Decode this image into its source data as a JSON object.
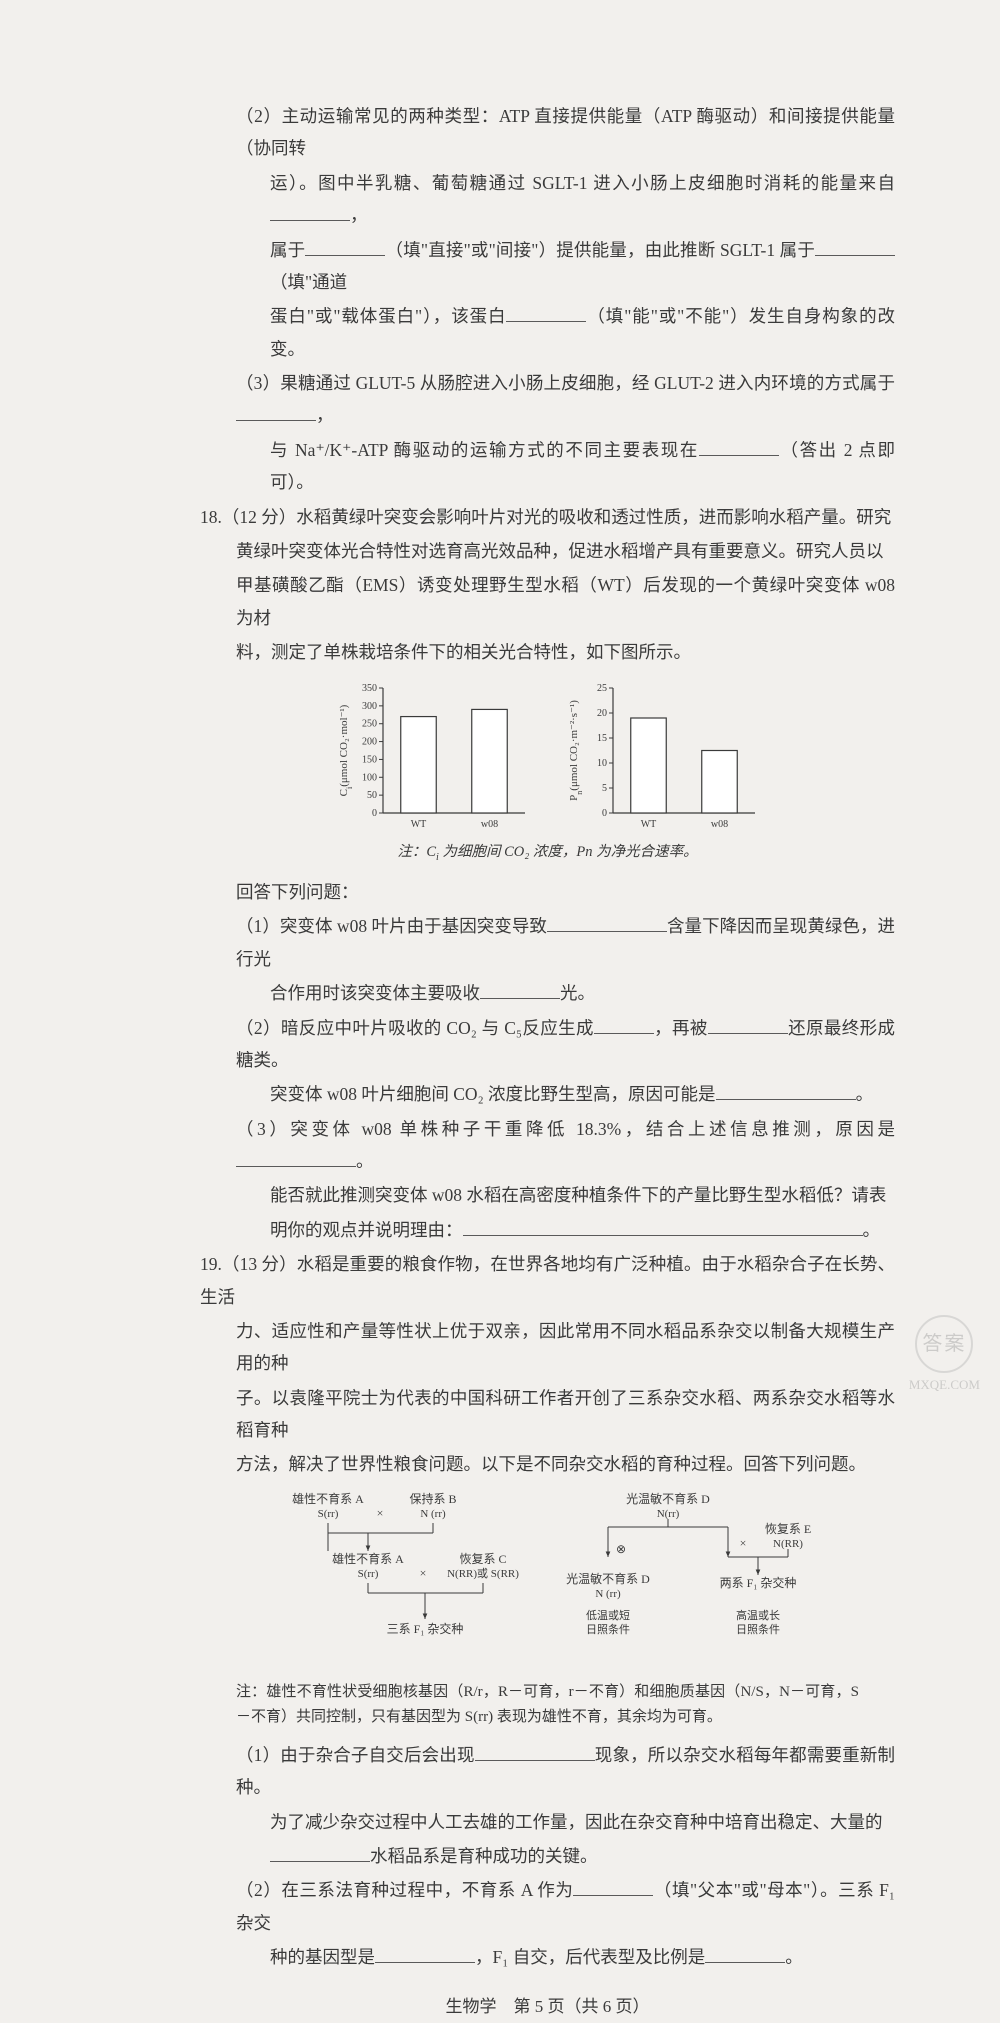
{
  "q17": {
    "sub2": {
      "line1": "（2）主动运输常见的两种类型：ATP 直接提供能量（ATP 酶驱动）和间接提供能量（协同转",
      "line2": "运）。图中半乳糖、葡萄糖通过 SGLT-1 进入小肠上皮细胞时消耗的能量来自",
      "line2_tail": "，",
      "line3a": "属于",
      "line3b": "（填\"直接\"或\"间接\"）提供能量，由此推断 SGLT-1 属于",
      "line3c": "（填\"通道",
      "line4a": "蛋白\"或\"载体蛋白\"），该蛋白",
      "line4b": "（填\"能\"或\"不能\"）发生自身构象的改变。"
    },
    "sub3": {
      "line1a": "（3）果糖通过 GLUT-5 从肠腔进入小肠上皮细胞，经 GLUT-2 进入内环境的方式属于",
      "line1b": "，",
      "line2a": "与 Na⁺/K⁺-ATP 酶驱动的运输方式的不同主要表现在",
      "line2b": "（答出 2 点即可）。"
    }
  },
  "q18": {
    "head": "18.（12 分）水稻黄绿叶突变会影响叶片对光的吸收和透过性质，进而影响水稻产量。研究",
    "line2": "黄绿叶突变体光合特性对选育高光效品种，促进水稻增产具有重要意义。研究人员以",
    "line3": "甲基磺酸乙酯（EMS）诱变处理野生型水稻（WT）后发现的一个黄绿叶突变体 w08 为材",
    "line4": "料，测定了单株栽培条件下的相关光合特性，如下图所示。",
    "caption_a": "注：C",
    "caption_b": " 为细胞间 CO₂ 浓度，P",
    "caption_c": "n 为净光合速率。",
    "answer_head": "回答下列问题：",
    "s1a": "（1）突变体 w08 叶片由于基因突变导致",
    "s1b": "含量下降因而呈现黄绿色，进行光",
    "s1c": "合作用时该突变体主要吸收",
    "s1d": "光。",
    "s2a": "（2）暗反应中叶片吸收的 CO₂ 与 C₅反应生成",
    "s2b": "，再被",
    "s2c": "还原最终形成糖类。",
    "s2d": "突变体 w08 叶片细胞间 CO₂ 浓度比野生型高，原因可能是",
    "s2e": "。",
    "s3a": "（3）突变体 w08 单株种子干重降低 18.3%，结合上述信息推测，原因是",
    "s3b": "。",
    "s3c": "能否就此推测突变体 w08 水稻在高密度种植条件下的产量比野生型水稻低？请表",
    "s3d": "明你的观点并说明理由：",
    "s3e": "。",
    "chart1": {
      "ylabel_a": "C",
      "ylabel_b": "(μmol CO₂·mol⁻¹)",
      "ymax": 350,
      "yticks": [
        0,
        50,
        100,
        150,
        200,
        250,
        300,
        350
      ],
      "cats": [
        "WT",
        "w08"
      ],
      "values": [
        270,
        290
      ],
      "bar_fill": "#ffffff",
      "bar_stroke": "#3a3a3a",
      "axis_color": "#3a3a3a"
    },
    "chart2": {
      "ylabel_a": "P",
      "ylabel_b": "(μmol CO₂·m⁻²·s⁻¹)",
      "ymax": 25,
      "yticks": [
        0,
        5,
        10,
        15,
        20,
        25
      ],
      "cats": [
        "WT",
        "w08"
      ],
      "values": [
        19,
        12.5
      ],
      "bar_fill": "#ffffff",
      "bar_stroke": "#3a3a3a",
      "axis_color": "#3a3a3a"
    }
  },
  "q19": {
    "head": "19.（13 分）水稻是重要的粮食作物，在世界各地均有广泛种植。由于水稻杂合子在长势、生活",
    "line2": "力、适应性和产量等性状上优于双亲，因此常用不同水稻品系杂交以制备大规模生产用的种",
    "line3": "子。以袁隆平院士为代表的中国科研工作者开创了三系杂交水稻、两系杂交水稻等水稻育种",
    "line4": "方法，解决了世界性粮食问题。以下是不同杂交水稻的育种过程。回答下列问题。",
    "diag": {
      "A": "雄性不育系 A",
      "A_g": "S(rr)",
      "B": "保持系 B",
      "B_g": "N (rr)",
      "A2": "雄性不育系 A",
      "A2_g": "S(rr)",
      "C": "恢复系 C",
      "C_g": "N(RR)或 S(RR)",
      "F1_3": "三系 F₁ 杂交种",
      "D": "光温敏不育系 D",
      "D_g": "N(rr)",
      "self": "⊗",
      "D2": "光温敏不育系 D",
      "D2_g": "N (rr)",
      "D2_cond": "低温或短\n日照条件",
      "E": "恢复系 E",
      "E_g": "N(RR)",
      "F1_2": "两系 F₁ 杂交种",
      "F1_2_cond": "高温或长\n日照条件",
      "cross": "×"
    },
    "note": "注：雄性不育性状受细胞核基因（R/r，R－可育，r－不育）和细胞质基因（N/S，N－可育，S－不育）共同控制，只有基因型为 S(rr) 表现为雄性不育，其余均为可育。",
    "s1a": "（1）由于杂合子自交后会出现",
    "s1b": "现象，所以杂交水稻每年都需要重新制种。",
    "s1c": "为了减少杂交过程中人工去雄的工作量，因此在杂交育种中培育出稳定、大量的",
    "s1d": "水稻品系是育种成功的关键。",
    "s2a": "（2）在三系法育种过程中，不育系 A 作为",
    "s2b": "（填\"父本\"或\"母本\"）。三系 F₁ 杂交",
    "s2c": "种的基因型是",
    "s2d": "，F₁ 自交，后代表型及比例是",
    "s2e": "。"
  },
  "footer": "生物学　第 5 页（共 6 页）",
  "watermark": {
    "top": "答案",
    "bottom": "MXQE.COM"
  }
}
